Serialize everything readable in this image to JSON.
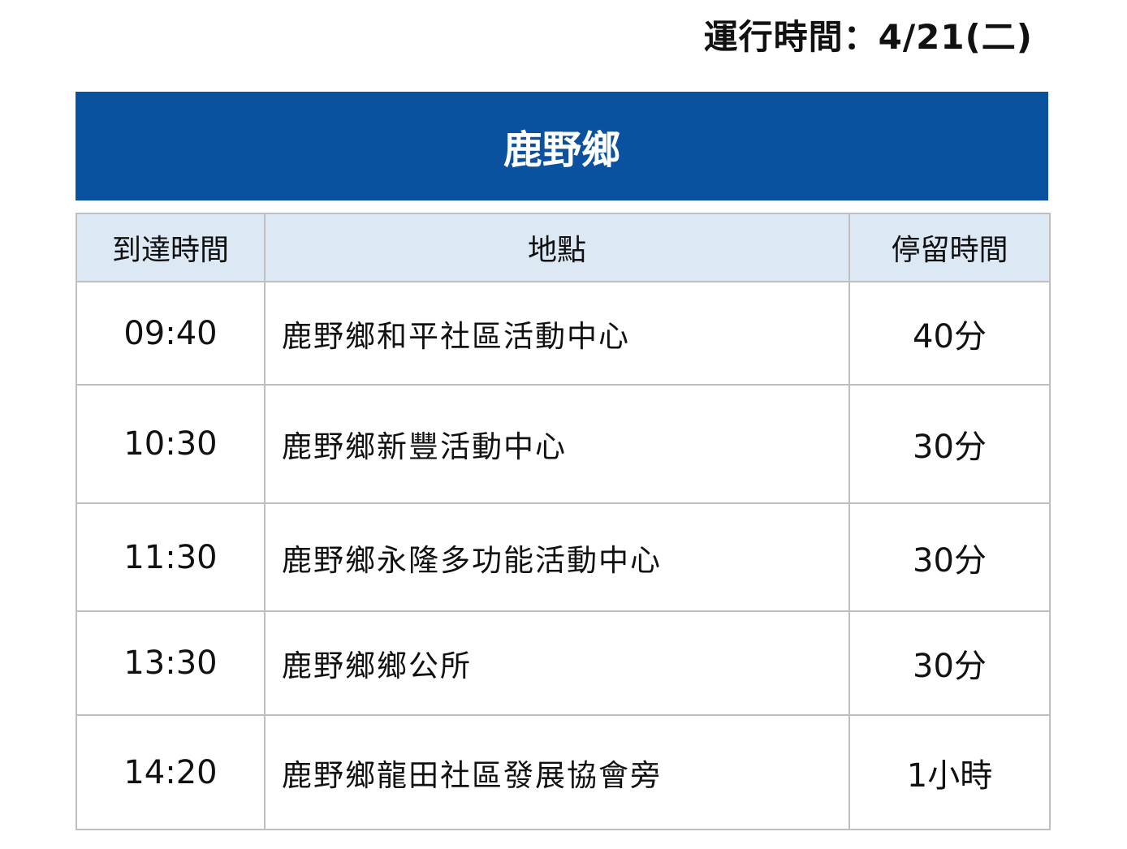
{
  "runtime_label": "運行時間：4/21(二)",
  "banner_title": "鹿野鄉",
  "table": {
    "headers": [
      "到達時間",
      "地點",
      "停留時間"
    ],
    "rows": [
      {
        "time": "09:40",
        "location": "鹿野鄉和平社區活動中心",
        "duration": "40分"
      },
      {
        "time": "10:30",
        "location": "鹿野鄉新豐活動中心",
        "duration": "30分"
      },
      {
        "time": "11:30",
        "location": "鹿野鄉永隆多功能活動中心",
        "duration": "30分"
      },
      {
        "time": "13:30",
        "location": "鹿野鄉鄉公所",
        "duration": "30分"
      },
      {
        "time": "14:20",
        "location": "鹿野鄉龍田社區發展協會旁",
        "duration": "1小時"
      }
    ]
  },
  "colors": {
    "banner": "#0a52a0",
    "header_bg": "#dde8f5",
    "border": "#bfbfbf"
  }
}
